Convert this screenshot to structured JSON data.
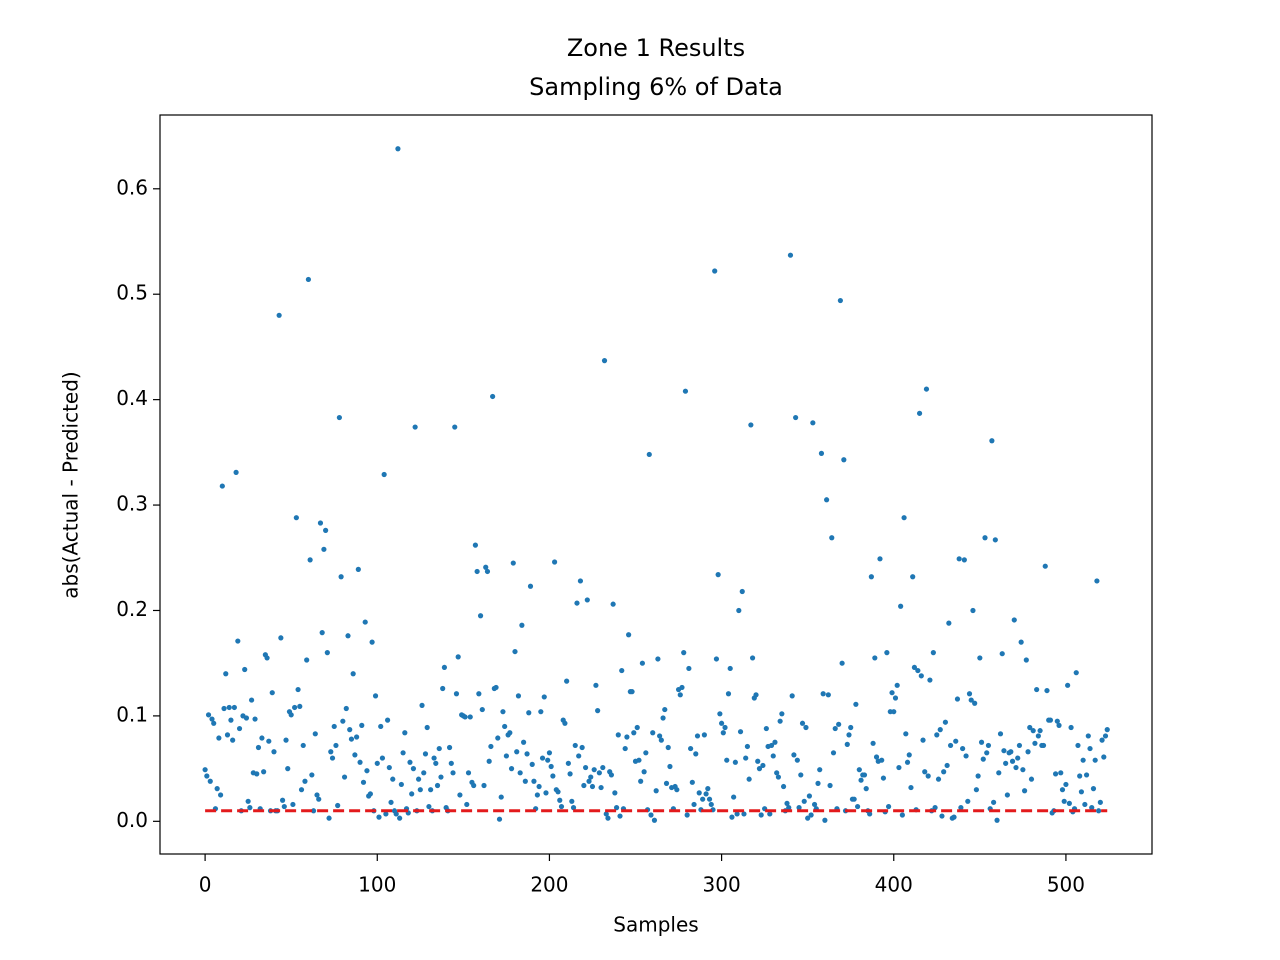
{
  "chart_data": {
    "type": "scatter",
    "title": "Zone 1 Results",
    "subtitle": "Sampling 6% of Data",
    "x_label": "Samples",
    "y_label": "abs(Actual - Predicted)",
    "xlim": [
      -26.2,
      550
    ],
    "ylim": [
      -0.031,
      0.67
    ],
    "xticks": [
      0,
      100,
      200,
      300,
      400,
      500
    ],
    "yticks": [
      {
        "value": 0,
        "label": "0.0"
      },
      0.1,
      0.2,
      0.3,
      0.4,
      0.5,
      0.6
    ],
    "color": "#1f77b4",
    "x": [
      0,
      1,
      2,
      3,
      4,
      5,
      6,
      7,
      8,
      9,
      10,
      11,
      12,
      13,
      14,
      15,
      16,
      17,
      18,
      19,
      20,
      21,
      22,
      23,
      24,
      25,
      26,
      27,
      28,
      29,
      30,
      31,
      32,
      33,
      34,
      35,
      36,
      37,
      38,
      39,
      40,
      41,
      42,
      43,
      44,
      45,
      46,
      47,
      48,
      49,
      50,
      51,
      52,
      53,
      54,
      55,
      56,
      57,
      58,
      59,
      60,
      61,
      62,
      63,
      64,
      65,
      66,
      67,
      68,
      69,
      70,
      71,
      72,
      73,
      74,
      75,
      76,
      77,
      78,
      79,
      80,
      81,
      82,
      83,
      84,
      85,
      86,
      87,
      88,
      89,
      90,
      91,
      92,
      93,
      94,
      95,
      96,
      97,
      98,
      99,
      100,
      101,
      102,
      103,
      104,
      105,
      106,
      107,
      108,
      109,
      110,
      111,
      112,
      113,
      114,
      115,
      116,
      117,
      118,
      119,
      120,
      121,
      122,
      123,
      124,
      125,
      126,
      127,
      128,
      129,
      130,
      131,
      132,
      133,
      134,
      135,
      136,
      137,
      138,
      139,
      140,
      141,
      142,
      143,
      144,
      145,
      146,
      147,
      148,
      149,
      150,
      151,
      152,
      153,
      154,
      155,
      156,
      157,
      158,
      159,
      160,
      161,
      162,
      163,
      164,
      165,
      166,
      167,
      168,
      169,
      170,
      171,
      172,
      173,
      174,
      175,
      176,
      177,
      178,
      179,
      180,
      181,
      182,
      183,
      184,
      185,
      186,
      187,
      188,
      189,
      190,
      191,
      192,
      193,
      194,
      195,
      196,
      197,
      198,
      199,
      200,
      201,
      202,
      203,
      204,
      205,
      206,
      207,
      208,
      209,
      210,
      211,
      212,
      213,
      214,
      215,
      216,
      217,
      218,
      219,
      220,
      221,
      222,
      223,
      224,
      225,
      226,
      227,
      228,
      229,
      230,
      231,
      232,
      233,
      234,
      235,
      236,
      237,
      238,
      239,
      240,
      241,
      242,
      243,
      244,
      245,
      246,
      247,
      248,
      249,
      250,
      251,
      252,
      253,
      254,
      255,
      256,
      257,
      258,
      259,
      260,
      261,
      262,
      263,
      264,
      265,
      266,
      267,
      268,
      269,
      270,
      271,
      272,
      273,
      274,
      275,
      276,
      277,
      278,
      279,
      280,
      281,
      282,
      283,
      284,
      285,
      286,
      287,
      288,
      289,
      290,
      291,
      292,
      293,
      294,
      295,
      296,
      297,
      298,
      299,
      300,
      301,
      302,
      303,
      304,
      305,
      306,
      307,
      308,
      309,
      310,
      311,
      312,
      313,
      314,
      315,
      316,
      317,
      318,
      319,
      320,
      321,
      322,
      323,
      324,
      325,
      326,
      327,
      328,
      329,
      330,
      331,
      332,
      333,
      334,
      335,
      336,
      337,
      338,
      339,
      340,
      341,
      342,
      343,
      344,
      345,
      346,
      347,
      348,
      349,
      350,
      351,
      352,
      353,
      354,
      355,
      356,
      357,
      358,
      359,
      360,
      361,
      362,
      363,
      364,
      365,
      366,
      367,
      368,
      369,
      370,
      371,
      372,
      373,
      374,
      375,
      376,
      377,
      378,
      379,
      380,
      381,
      382,
      383,
      384,
      385,
      386,
      387,
      388,
      389,
      390,
      391,
      392,
      393,
      394,
      395,
      396,
      397,
      398,
      399,
      400,
      401,
      402,
      403,
      404,
      405,
      406,
      407,
      408,
      409,
      410,
      411,
      412,
      413,
      414,
      415,
      416,
      417,
      418,
      419,
      420,
      421,
      422,
      423,
      424,
      425,
      426,
      427,
      428,
      429,
      430,
      431,
      432,
      433,
      434,
      435,
      436,
      437,
      438,
      439,
      440,
      441,
      442,
      443,
      444,
      445,
      446,
      447,
      448,
      449,
      450,
      451,
      452,
      453,
      454,
      455,
      456,
      457,
      458,
      459,
      460,
      461,
      462,
      463,
      464,
      465,
      466,
      467,
      468,
      469,
      470,
      471,
      472,
      473,
      474,
      475,
      476,
      477,
      478,
      479,
      480,
      481,
      482,
      483,
      484,
      485,
      486,
      487,
      488,
      489,
      490,
      491,
      492,
      493,
      494,
      495,
      496,
      497,
      498,
      499,
      500,
      501,
      502,
      503,
      504,
      505,
      506,
      507,
      508,
      509,
      510,
      511,
      512,
      513,
      514,
      515,
      516,
      517,
      518,
      519,
      520,
      521,
      522,
      523,
      524
    ],
    "values": [
      0.049,
      0.043,
      0.101,
      0.038,
      0.097,
      0.093,
      0.012,
      0.031,
      0.079,
      0.025,
      0.318,
      0.107,
      0.14,
      0.082,
      0.108,
      0.096,
      0.077,
      0.108,
      0.331,
      0.171,
      0.088,
      0.01,
      0.1,
      0.144,
      0.098,
      0.019,
      0.013,
      0.115,
      0.046,
      0.097,
      0.045,
      0.07,
      0.012,
      0.079,
      0.047,
      0.158,
      0.155,
      0.076,
      0.01,
      0.122,
      0.066,
      0.01,
      0.01,
      0.48,
      0.174,
      0.02,
      0.014,
      0.077,
      0.05,
      0.104,
      0.101,
      0.016,
      0.108,
      0.288,
      0.125,
      0.109,
      0.03,
      0.072,
      0.038,
      0.153,
      0.514,
      0.248,
      0.044,
      0.01,
      0.083,
      0.025,
      0.021,
      0.283,
      0.179,
      0.258,
      0.276,
      0.16,
      0.003,
      0.066,
      0.06,
      0.09,
      0.072,
      0.015,
      0.383,
      0.232,
      0.095,
      0.042,
      0.107,
      0.176,
      0.087,
      0.078,
      0.14,
      0.063,
      0.08,
      0.239,
      0.056,
      0.091,
      0.037,
      0.189,
      0.048,
      0.024,
      0.026,
      0.17,
      0.01,
      0.119,
      0.055,
      0.004,
      0.09,
      0.06,
      0.329,
      0.007,
      0.096,
      0.051,
      0.018,
      0.04,
      0.01,
      0.007,
      0.638,
      0.003,
      0.035,
      0.065,
      0.084,
      0.012,
      0.008,
      0.056,
      0.026,
      0.05,
      0.374,
      0.01,
      0.04,
      0.03,
      0.11,
      0.046,
      0.064,
      0.089,
      0.014,
      0.03,
      0.01,
      0.06,
      0.055,
      0.034,
      0.069,
      0.042,
      0.126,
      0.146,
      0.013,
      0.01,
      0.07,
      0.055,
      0.046,
      0.374,
      0.121,
      0.156,
      0.025,
      0.101,
      0.1,
      0.099,
      0.016,
      0.046,
      0.099,
      0.037,
      0.034,
      0.262,
      0.237,
      0.121,
      0.195,
      0.106,
      0.034,
      0.241,
      0.237,
      0.057,
      0.071,
      0.403,
      0.126,
      0.127,
      0.079,
      0.002,
      0.023,
      0.104,
      0.09,
      0.062,
      0.082,
      0.084,
      0.05,
      0.245,
      0.161,
      0.066,
      0.119,
      0.046,
      0.186,
      0.075,
      0.038,
      0.064,
      0.103,
      0.223,
      0.054,
      0.038,
      0.012,
      0.025,
      0.033,
      0.104,
      0.06,
      0.118,
      0.027,
      0.058,
      0.065,
      0.052,
      0.043,
      0.246,
      0.03,
      0.028,
      0.02,
      0.014,
      0.096,
      0.093,
      0.133,
      0.055,
      0.045,
      0.019,
      0.013,
      0.072,
      0.207,
      0.062,
      0.228,
      0.07,
      0.034,
      0.051,
      0.21,
      0.038,
      0.042,
      0.033,
      0.049,
      0.129,
      0.105,
      0.046,
      0.032,
      0.051,
      0.437,
      0.007,
      0.003,
      0.047,
      0.044,
      0.206,
      0.027,
      0.013,
      0.082,
      0.005,
      0.143,
      0.012,
      0.069,
      0.08,
      0.177,
      0.123,
      0.123,
      0.084,
      0.057,
      0.089,
      0.058,
      0.038,
      0.15,
      0.047,
      0.065,
      0.011,
      0.348,
      0.006,
      0.084,
      0.001,
      0.029,
      0.154,
      0.081,
      0.077,
      0.098,
      0.106,
      0.036,
      0.07,
      0.052,
      0.032,
      0.012,
      0.033,
      0.03,
      0.125,
      0.12,
      0.127,
      0.16,
      0.408,
      0.006,
      0.145,
      0.069,
      0.037,
      0.016,
      0.064,
      0.081,
      0.027,
      0.011,
      0.021,
      0.082,
      0.026,
      0.031,
      0.021,
      0.016,
      0.011,
      0.522,
      0.154,
      0.234,
      0.102,
      0.093,
      0.084,
      0.089,
      0.058,
      0.121,
      0.145,
      0.004,
      0.023,
      0.056,
      0.007,
      0.2,
      0.085,
      0.218,
      0.007,
      0.06,
      0.071,
      0.04,
      0.376,
      0.155,
      0.117,
      0.12,
      0.057,
      0.05,
      0.006,
      0.053,
      0.012,
      0.088,
      0.071,
      0.007,
      0.072,
      0.062,
      0.075,
      0.046,
      0.042,
      0.095,
      0.102,
      0.033,
      0.01,
      0.017,
      0.013,
      0.537,
      0.119,
      0.063,
      0.383,
      0.058,
      0.013,
      0.044,
      0.093,
      0.019,
      0.089,
      0.003,
      0.024,
      0.006,
      0.378,
      0.016,
      0.012,
      0.036,
      0.049,
      0.349,
      0.121,
      0.001,
      0.305,
      0.12,
      0.034,
      0.269,
      0.065,
      0.088,
      0.012,
      0.092,
      0.494,
      0.15,
      0.343,
      0.01,
      0.073,
      0.082,
      0.089,
      0.021,
      0.021,
      0.111,
      0.014,
      0.049,
      0.039,
      0.044,
      0.044,
      0.031,
      0.01,
      0.007,
      0.232,
      0.074,
      0.155,
      0.061,
      0.057,
      0.249,
      0.058,
      0.041,
      0.009,
      0.16,
      0.014,
      0.104,
      0.122,
      0.104,
      0.117,
      0.129,
      0.051,
      0.204,
      0.006,
      0.288,
      0.083,
      0.056,
      0.063,
      0.032,
      0.232,
      0.146,
      0.011,
      0.143,
      0.387,
      0.138,
      0.077,
      0.047,
      0.41,
      0.043,
      0.134,
      0.01,
      0.16,
      0.013,
      0.082,
      0.04,
      0.087,
      0.005,
      0.047,
      0.094,
      0.053,
      0.188,
      0.072,
      0.003,
      0.004,
      0.076,
      0.116,
      0.249,
      0.013,
      0.069,
      0.248,
      0.062,
      0.019,
      0.121,
      0.115,
      0.2,
      0.112,
      0.03,
      0.043,
      0.155,
      0.075,
      0.059,
      0.269,
      0.065,
      0.072,
      0.012,
      0.361,
      0.018,
      0.267,
      0.001,
      0.046,
      0.083,
      0.159,
      0.067,
      0.055,
      0.025,
      0.065,
      0.066,
      0.057,
      0.191,
      0.051,
      0.06,
      0.072,
      0.17,
      0.049,
      0.029,
      0.153,
      0.066,
      0.089,
      0.04,
      0.086,
      0.074,
      0.125,
      0.081,
      0.086,
      0.072,
      0.072,
      0.242,
      0.124,
      0.096,
      0.096,
      0.008,
      0.01,
      0.045,
      0.095,
      0.091,
      0.046,
      0.03,
      0.019,
      0.035,
      0.129,
      0.017,
      0.089,
      0.009,
      0.012,
      0.141,
      0.072,
      0.043,
      0.028,
      0.058,
      0.016,
      0.044,
      0.081,
      0.069,
      0.013,
      0.031,
      0.058,
      0.228,
      0.01,
      0.018,
      0.077,
      0.061,
      0.081,
      0.087
    ],
    "lines": [
      {
        "x": [
          0,
          524
        ],
        "values": [
          0.01,
          0.01
        ],
        "color": "#e31a1c",
        "style": "dashed"
      }
    ]
  }
}
